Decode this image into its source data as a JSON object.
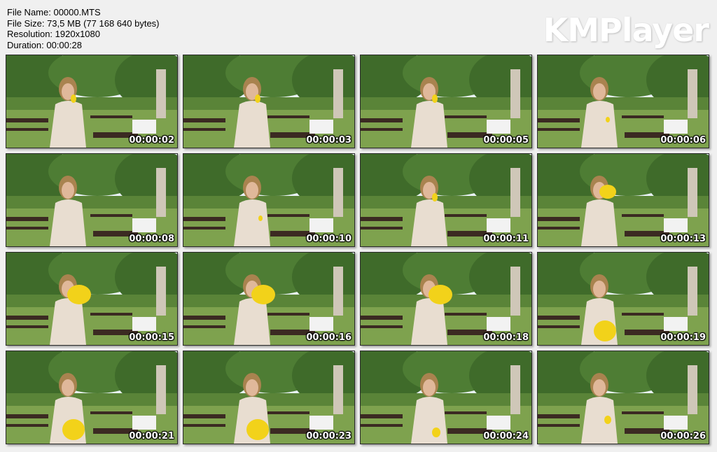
{
  "file_info": {
    "file_name": "File Name: 00000.MTS",
    "file_size": "File Size: 73,5 MB (77 168 640 bytes)",
    "resolution": "Resolution: 1920x1080",
    "duration": "Duration: 00:00:28"
  },
  "logo": "KMPlayer",
  "thumbnails": [
    {
      "time": "00:00:02",
      "balloon": "small-at-mouth"
    },
    {
      "time": "00:00:03",
      "balloon": "small-at-mouth"
    },
    {
      "time": "00:00:05",
      "balloon": "small-at-mouth"
    },
    {
      "time": "00:00:06",
      "balloon": "in-hands"
    },
    {
      "time": "00:00:08",
      "balloon": "none"
    },
    {
      "time": "00:00:10",
      "balloon": "in-hands"
    },
    {
      "time": "00:00:11",
      "balloon": "small-at-mouth"
    },
    {
      "time": "00:00:13",
      "balloon": "medium-at-mouth"
    },
    {
      "time": "00:00:15",
      "balloon": "large-at-mouth"
    },
    {
      "time": "00:00:16",
      "balloon": "large-at-mouth"
    },
    {
      "time": "00:00:18",
      "balloon": "large-at-mouth"
    },
    {
      "time": "00:00:19",
      "balloon": "large-in-lap"
    },
    {
      "time": "00:00:21",
      "balloon": "large-in-lap"
    },
    {
      "time": "00:00:23",
      "balloon": "large-in-lap"
    },
    {
      "time": "00:00:24",
      "balloon": "small-in-lap"
    },
    {
      "time": "00:00:26",
      "balloon": "small-in-hands"
    }
  ],
  "colors": {
    "balloon": "#f2d21a",
    "grass": "#7ea24e",
    "foliage": "#3f6b2a",
    "sky": "#e9f2f7",
    "dress": "#e8ddd0",
    "bench": "#3b2a22"
  }
}
